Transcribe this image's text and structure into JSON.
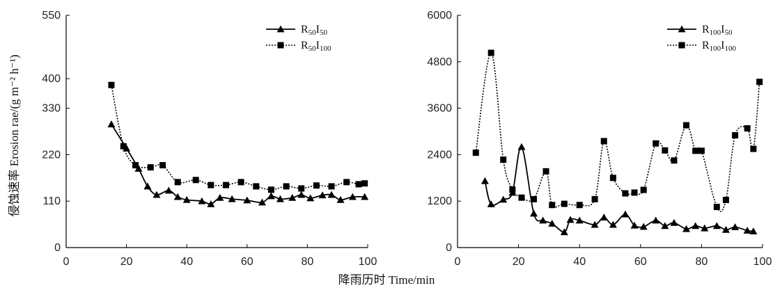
{
  "ylabel": "侵蚀速率 Erosion rae/(g m⁻² h⁻¹)",
  "xlabel": "降雨历时 Time/min",
  "chart_data": [
    {
      "type": "line",
      "xlim": [
        0,
        100
      ],
      "ylim": [
        0,
        550
      ],
      "xticks": [
        0,
        20,
        40,
        60,
        80,
        100
      ],
      "yticks": [
        0,
        110,
        220,
        330,
        400,
        550
      ],
      "legend_position": "top-right",
      "series": [
        {
          "name": "R50I50",
          "name_main": "R",
          "name_sub1": "50",
          "name_mid": "I",
          "name_sub2": "50",
          "marker": "triangle",
          "line": "solid",
          "x": [
            15,
            20,
            24,
            27,
            30,
            34,
            37,
            40,
            45,
            48,
            51,
            55,
            60,
            65,
            68,
            71,
            75,
            78,
            81,
            85,
            88,
            91,
            95,
            99
          ],
          "y": [
            292,
            235,
            187,
            145,
            125,
            135,
            120,
            113,
            110,
            103,
            118,
            115,
            112,
            107,
            122,
            115,
            118,
            125,
            117,
            124,
            125,
            113,
            120,
            120
          ]
        },
        {
          "name": "R50I100",
          "name_main": "R",
          "name_sub1": "50",
          "name_mid": "I",
          "name_sub2": "100",
          "marker": "square",
          "line": "dotted",
          "x": [
            15,
            19,
            23,
            28,
            32,
            37,
            43,
            48,
            53,
            58,
            63,
            68,
            73,
            78,
            83,
            88,
            93,
            97,
            99
          ],
          "y": [
            385,
            240,
            195,
            190,
            195,
            155,
            160,
            148,
            148,
            155,
            145,
            137,
            145,
            140,
            147,
            145,
            155,
            150,
            152
          ]
        }
      ]
    },
    {
      "type": "line",
      "xlim": [
        0,
        100
      ],
      "ylim": [
        0,
        6000
      ],
      "xticks": [
        0,
        20,
        40,
        60,
        80,
        100
      ],
      "yticks": [
        0,
        1200,
        2400,
        3600,
        4800,
        6000
      ],
      "legend_position": "top-right",
      "series": [
        {
          "name": "R100I50",
          "name_main": "R",
          "name_sub1": "100",
          "name_mid": "I",
          "name_sub2": "50",
          "marker": "triangle",
          "line": "solid",
          "x": [
            9,
            11,
            15,
            18,
            21,
            25,
            28,
            31,
            35,
            37,
            40,
            45,
            48,
            51,
            55,
            58,
            61,
            65,
            68,
            71,
            75,
            78,
            81,
            85,
            88,
            91,
            95,
            97
          ],
          "y": [
            1720,
            1120,
            1240,
            1420,
            2600,
            880,
            700,
            620,
            400,
            720,
            700,
            590,
            780,
            590,
            860,
            570,
            540,
            700,
            560,
            640,
            480,
            560,
            500,
            560,
            460,
            530,
            440,
            420
          ]
        },
        {
          "name": "R100I100",
          "name_main": "R",
          "name_sub1": "100",
          "name_mid": "I",
          "name_sub2": "100",
          "marker": "square",
          "line": "dotted",
          "x": [
            6,
            11,
            15,
            18,
            21,
            25,
            29,
            31,
            35,
            40,
            45,
            48,
            51,
            55,
            58,
            61,
            65,
            68,
            71,
            75,
            78,
            80,
            85,
            88,
            91,
            95,
            97,
            99
          ],
          "y": [
            2450,
            5030,
            2270,
            1500,
            1290,
            1250,
            1970,
            1100,
            1130,
            1100,
            1250,
            2750,
            1800,
            1400,
            1420,
            1490,
            2690,
            2510,
            2250,
            3160,
            2500,
            2500,
            1050,
            1230,
            2900,
            3080,
            2550,
            4280
          ]
        }
      ]
    }
  ]
}
